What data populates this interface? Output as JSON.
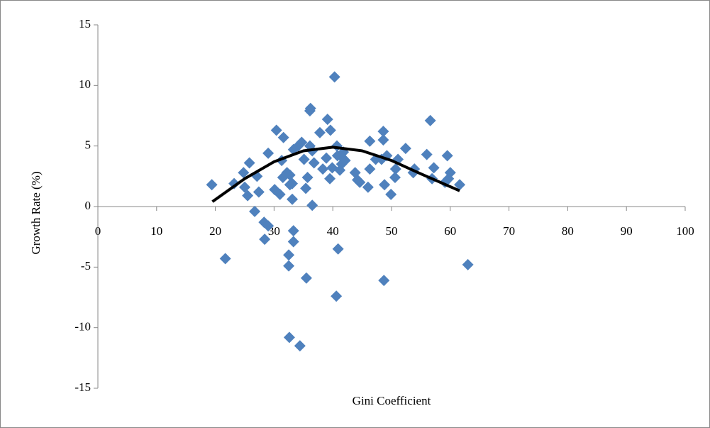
{
  "chart_data": {
    "type": "scatter",
    "x_label": "Gini Coefficient",
    "y_label": "Growth Rate (%)",
    "xlim": [
      0,
      100
    ],
    "xticks": [
      0,
      10,
      20,
      30,
      40,
      50,
      60,
      70,
      80,
      90,
      100
    ],
    "ylim": [
      -15,
      15
    ],
    "yticks": [
      -15,
      -10,
      -5,
      0,
      5,
      10,
      15
    ],
    "grid": false,
    "series": [
      {
        "type": "scatter",
        "color": "#4f81bd",
        "x": [
          19.4,
          21.7,
          23.2,
          24.8,
          25.0,
          25.5,
          25.8,
          26.7,
          27.1,
          27.4,
          28.3,
          28.4,
          29.0,
          29.0,
          30.1,
          30.4,
          31.0,
          31.3,
          31.6,
          31.5,
          32.2,
          32.5,
          32.5,
          32.6,
          32.7,
          32.7,
          33.1,
          33.1,
          33.3,
          33.3,
          33.3,
          34.1,
          34.4,
          34.7,
          35.1,
          35.4,
          35.5,
          35.7,
          36.1,
          36.2,
          36.1,
          36.5,
          36.5,
          36.8,
          37.8,
          38.3,
          38.9,
          39.1,
          39.5,
          39.6,
          39.9,
          40.3,
          40.6,
          40.8,
          40.9,
          40.7,
          41.2,
          41.5,
          41.8,
          42.1,
          41.7,
          43.8,
          44.2,
          44.6,
          46.3,
          46.3,
          46.0,
          47.3,
          48.6,
          48.6,
          48.3,
          48.8,
          48.7,
          49.2,
          49.9,
          50.6,
          50.7,
          51.1,
          52.4,
          53.7,
          53.9,
          56.0,
          56.6,
          56.9,
          57.2,
          59.1,
          59.5,
          60.0,
          59.7,
          61.6,
          63.0
        ],
        "values": [
          1.8,
          -4.3,
          1.9,
          2.8,
          1.6,
          0.9,
          3.6,
          -0.4,
          2.5,
          1.2,
          -1.3,
          -2.7,
          -1.6,
          4.4,
          1.4,
          6.3,
          1.0,
          3.8,
          5.7,
          2.4,
          2.8,
          -4.0,
          -4.9,
          -10.8,
          2.6,
          1.8,
          0.6,
          1.9,
          -2.0,
          -2.9,
          4.7,
          5.0,
          -11.5,
          5.3,
          3.9,
          1.5,
          -5.9,
          2.4,
          7.9,
          8.1,
          5.0,
          0.1,
          4.6,
          3.6,
          6.1,
          3.1,
          4.0,
          7.2,
          2.3,
          6.3,
          3.2,
          10.7,
          -7.4,
          4.2,
          -3.5,
          5.0,
          3.0,
          3.5,
          4.5,
          3.8,
          4.0,
          2.8,
          2.2,
          2.0,
          5.4,
          3.1,
          1.6,
          3.9,
          6.2,
          5.5,
          3.9,
          1.8,
          -6.1,
          4.2,
          1.0,
          2.4,
          3.1,
          3.9,
          4.8,
          2.8,
          3.1,
          4.3,
          7.1,
          2.3,
          3.2,
          2.0,
          4.2,
          2.8,
          2.3,
          1.8,
          -4.8
        ]
      },
      {
        "type": "line",
        "color": "#000000",
        "x": [
          19.5,
          25,
          30,
          35,
          40,
          45,
          50,
          55,
          61.6
        ],
        "values": [
          0.4,
          2.3,
          3.7,
          4.6,
          4.9,
          4.6,
          3.8,
          2.7,
          1.3
        ]
      }
    ]
  }
}
